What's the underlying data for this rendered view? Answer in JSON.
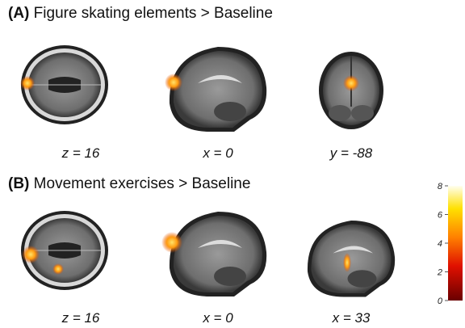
{
  "panels": [
    {
      "label": "(A)",
      "title": "Figure skating elements > Baseline",
      "slices": [
        "z = 16",
        "x = 0",
        "y = -88"
      ]
    },
    {
      "label": "(B)",
      "title": "Movement exercises > Baseline",
      "slices": [
        "z = 16",
        "x = 0",
        "x = 33"
      ]
    }
  ],
  "colorbar": {
    "range": [
      0,
      8
    ],
    "ticks": [
      0,
      2,
      4,
      6,
      8
    ]
  }
}
